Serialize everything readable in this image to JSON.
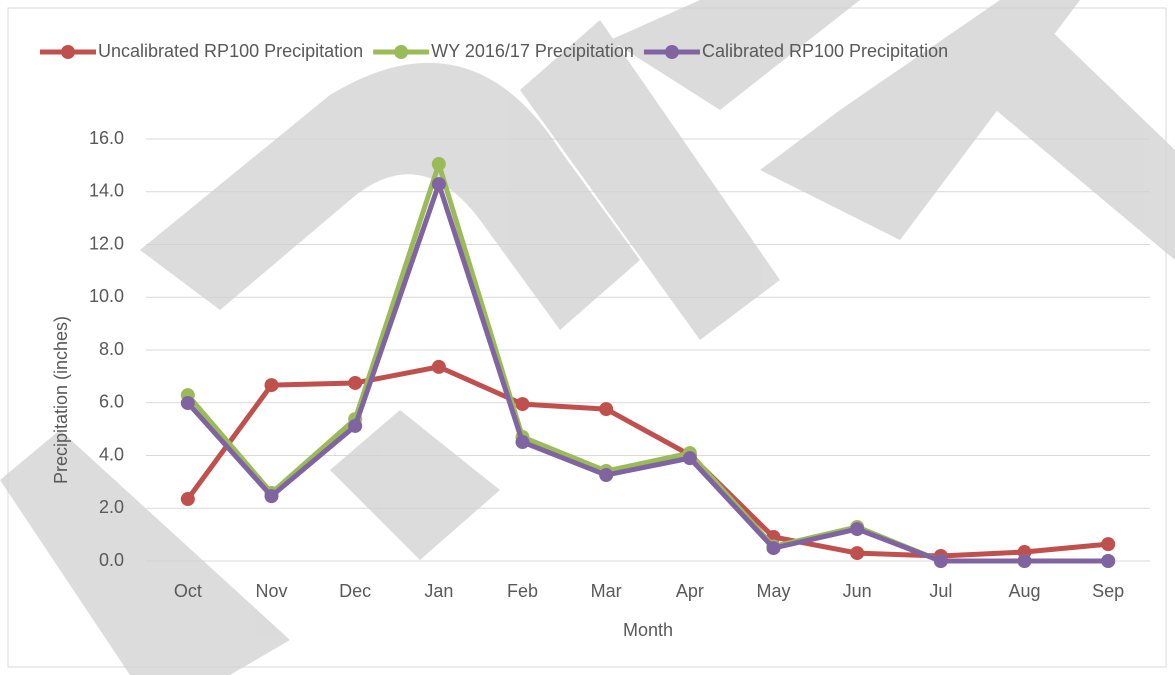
{
  "chart_data": {
    "type": "line",
    "categories": [
      "Oct",
      "Nov",
      "Dec",
      "Jan",
      "Feb",
      "Mar",
      "Apr",
      "May",
      "Jun",
      "Jul",
      "Aug",
      "Sep"
    ],
    "series": [
      {
        "name": "Uncalibrated RP100 Precipitation",
        "color": "#c0504d",
        "values": [
          2.35,
          6.67,
          6.75,
          7.36,
          5.95,
          5.76,
          4.02,
          0.91,
          0.3,
          0.19,
          0.34,
          0.64
        ]
      },
      {
        "name": "WY 2016/17 Precipitation",
        "color": "#9bbb59",
        "values": [
          6.29,
          2.58,
          5.38,
          15.05,
          4.7,
          3.41,
          4.09,
          0.55,
          1.29,
          0.0,
          0.0,
          0.0
        ]
      },
      {
        "name": "Calibrated RP100 Precipitation",
        "color": "#8064a2",
        "values": [
          5.99,
          2.46,
          5.12,
          14.29,
          4.51,
          3.26,
          3.9,
          0.49,
          1.21,
          0.0,
          0.0,
          0.0
        ]
      }
    ],
    "ylim": [
      0,
      16
    ],
    "yticks": [
      {
        "value": 0,
        "label": "0.0"
      },
      {
        "value": 2,
        "label": "2.0"
      },
      {
        "value": 4,
        "label": "4.0"
      },
      {
        "value": 6,
        "label": "6.0"
      },
      {
        "value": 8,
        "label": "8.0"
      },
      {
        "value": 10,
        "label": "10.0"
      },
      {
        "value": 12,
        "label": "12.0"
      },
      {
        "value": 14,
        "label": "14.0"
      },
      {
        "value": 16,
        "label": "16.0"
      }
    ],
    "grid": true,
    "legend": "top",
    "x_label": "Month",
    "y_label": "Precipitation (inches)"
  }
}
